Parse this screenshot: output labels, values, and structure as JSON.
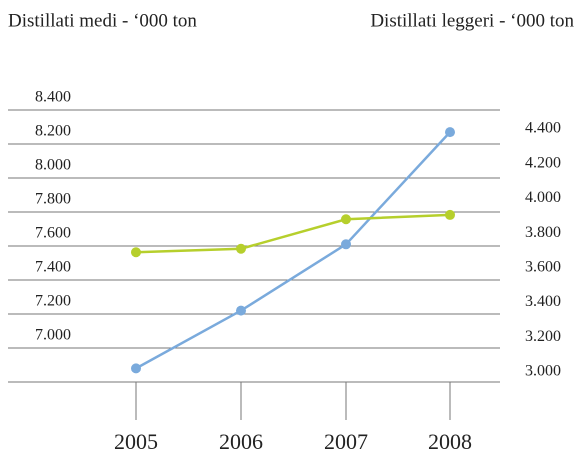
{
  "chart_data": {
    "type": "line",
    "titles": [
      "Distillati medi - ‘000 ton",
      "Distillati leggeri - ‘000 ton"
    ],
    "categories": [
      "2005",
      "2006",
      "2007",
      "2008"
    ],
    "series": [
      {
        "name": "Distillati medi - ‘000 ton",
        "color": "#7aaadc",
        "values": [
          6880,
          7220,
          7610,
          8270
        ]
      },
      {
        "name": "Distillati leggeri - ‘000 ton",
        "color": "#b6cf2c",
        "axis": "y2",
        "values": [
          3690,
          3710,
          3880,
          3905
        ]
      }
    ],
    "ylim": [
      6800,
      8400
    ],
    "yticks": [
      {
        "value": 7000,
        "label": "7.000"
      },
      {
        "value": 7200,
        "label": "7.200"
      },
      {
        "value": 7400,
        "label": "7.400"
      },
      {
        "value": 7600,
        "label": "7.600"
      },
      {
        "value": 7800,
        "label": "7.800"
      },
      {
        "value": 8000,
        "label": "8.000"
      },
      {
        "value": 8200,
        "label": "8.200"
      },
      {
        "value": 8400,
        "label": "8.400"
      }
    ],
    "y2lim": [
      3000,
      4400
    ],
    "y2ticks": [
      {
        "value": 3000,
        "label": "3.000"
      },
      {
        "value": 3200,
        "label": "3.200"
      },
      {
        "value": 3400,
        "label": "3.400"
      },
      {
        "value": 3600,
        "label": "3.600"
      },
      {
        "value": 3800,
        "label": "3.800"
      },
      {
        "value": 4000,
        "label": "4.000"
      },
      {
        "value": 4200,
        "label": "4.200"
      },
      {
        "value": 4400,
        "label": "4.400"
      }
    ],
    "grid": true
  }
}
